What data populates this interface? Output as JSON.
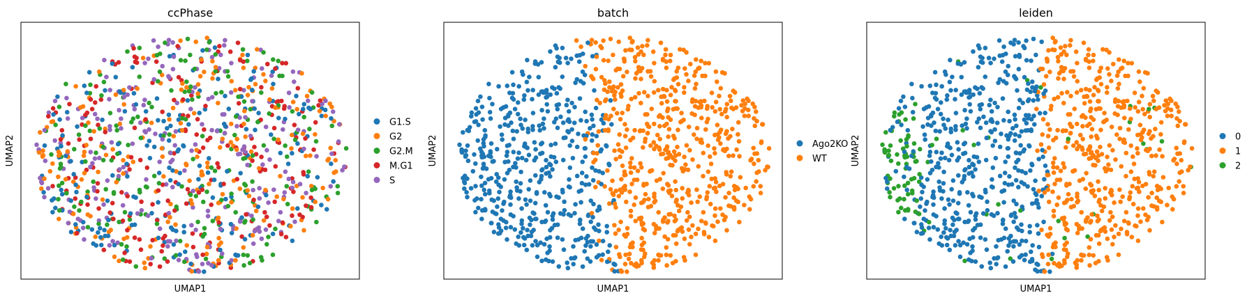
{
  "chart_data": [
    {
      "type": "scatter",
      "title": "ccPhase",
      "xlabel": "UMAP1",
      "ylabel": "UMAP2",
      "grid": false,
      "legend": "right",
      "series": [
        {
          "name": "G1.S",
          "color": "#1f77b4"
        },
        {
          "name": "G2",
          "color": "#ff7f0e"
        },
        {
          "name": "G2.M",
          "color": "#2ca02c"
        },
        {
          "name": "M.G1",
          "color": "#d62728"
        },
        {
          "name": "S",
          "color": "#9467bd"
        }
      ],
      "coloring": "mixed"
    },
    {
      "type": "scatter",
      "title": "batch",
      "xlabel": "UMAP1",
      "ylabel": "UMAP2",
      "grid": false,
      "legend": "right",
      "series": [
        {
          "name": "Ago2KO",
          "color": "#1f77b4"
        },
        {
          "name": "WT",
          "color": "#ff7f0e"
        }
      ],
      "coloring": "left-right"
    },
    {
      "type": "scatter",
      "title": "leiden",
      "xlabel": "UMAP1",
      "ylabel": "UMAP2",
      "grid": false,
      "legend": "right",
      "series": [
        {
          "name": "0",
          "color": "#1f77b4"
        },
        {
          "name": "1",
          "color": "#ff7f0e"
        },
        {
          "name": "2",
          "color": "#2ca02c"
        }
      ],
      "coloring": "clusters"
    }
  ]
}
